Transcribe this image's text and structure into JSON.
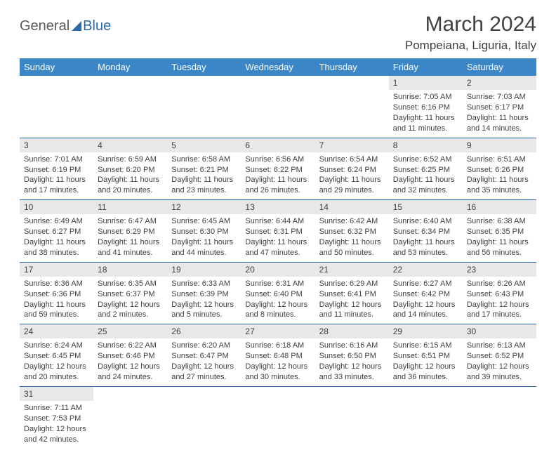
{
  "logo": {
    "text1": "General",
    "text2": "Blue"
  },
  "title": "March 2024",
  "location": "Pompeiana, Liguria, Italy",
  "colors": {
    "header_bg": "#3b86c6",
    "header_text": "#ffffff",
    "accent": "#2b6aaa",
    "daynum_bg": "#e8e8e8",
    "text": "#404040",
    "background": "#ffffff"
  },
  "dayHeaders": [
    "Sunday",
    "Monday",
    "Tuesday",
    "Wednesday",
    "Thursday",
    "Friday",
    "Saturday"
  ],
  "weeks": [
    [
      null,
      null,
      null,
      null,
      null,
      {
        "n": "1",
        "sr": "7:05 AM",
        "ss": "6:16 PM",
        "dl": "11 hours and 11 minutes."
      },
      {
        "n": "2",
        "sr": "7:03 AM",
        "ss": "6:17 PM",
        "dl": "11 hours and 14 minutes."
      }
    ],
    [
      {
        "n": "3",
        "sr": "7:01 AM",
        "ss": "6:19 PM",
        "dl": "11 hours and 17 minutes."
      },
      {
        "n": "4",
        "sr": "6:59 AM",
        "ss": "6:20 PM",
        "dl": "11 hours and 20 minutes."
      },
      {
        "n": "5",
        "sr": "6:58 AM",
        "ss": "6:21 PM",
        "dl": "11 hours and 23 minutes."
      },
      {
        "n": "6",
        "sr": "6:56 AM",
        "ss": "6:22 PM",
        "dl": "11 hours and 26 minutes."
      },
      {
        "n": "7",
        "sr": "6:54 AM",
        "ss": "6:24 PM",
        "dl": "11 hours and 29 minutes."
      },
      {
        "n": "8",
        "sr": "6:52 AM",
        "ss": "6:25 PM",
        "dl": "11 hours and 32 minutes."
      },
      {
        "n": "9",
        "sr": "6:51 AM",
        "ss": "6:26 PM",
        "dl": "11 hours and 35 minutes."
      }
    ],
    [
      {
        "n": "10",
        "sr": "6:49 AM",
        "ss": "6:27 PM",
        "dl": "11 hours and 38 minutes."
      },
      {
        "n": "11",
        "sr": "6:47 AM",
        "ss": "6:29 PM",
        "dl": "11 hours and 41 minutes."
      },
      {
        "n": "12",
        "sr": "6:45 AM",
        "ss": "6:30 PM",
        "dl": "11 hours and 44 minutes."
      },
      {
        "n": "13",
        "sr": "6:44 AM",
        "ss": "6:31 PM",
        "dl": "11 hours and 47 minutes."
      },
      {
        "n": "14",
        "sr": "6:42 AM",
        "ss": "6:32 PM",
        "dl": "11 hours and 50 minutes."
      },
      {
        "n": "15",
        "sr": "6:40 AM",
        "ss": "6:34 PM",
        "dl": "11 hours and 53 minutes."
      },
      {
        "n": "16",
        "sr": "6:38 AM",
        "ss": "6:35 PM",
        "dl": "11 hours and 56 minutes."
      }
    ],
    [
      {
        "n": "17",
        "sr": "6:36 AM",
        "ss": "6:36 PM",
        "dl": "11 hours and 59 minutes."
      },
      {
        "n": "18",
        "sr": "6:35 AM",
        "ss": "6:37 PM",
        "dl": "12 hours and 2 minutes."
      },
      {
        "n": "19",
        "sr": "6:33 AM",
        "ss": "6:39 PM",
        "dl": "12 hours and 5 minutes."
      },
      {
        "n": "20",
        "sr": "6:31 AM",
        "ss": "6:40 PM",
        "dl": "12 hours and 8 minutes."
      },
      {
        "n": "21",
        "sr": "6:29 AM",
        "ss": "6:41 PM",
        "dl": "12 hours and 11 minutes."
      },
      {
        "n": "22",
        "sr": "6:27 AM",
        "ss": "6:42 PM",
        "dl": "12 hours and 14 minutes."
      },
      {
        "n": "23",
        "sr": "6:26 AM",
        "ss": "6:43 PM",
        "dl": "12 hours and 17 minutes."
      }
    ],
    [
      {
        "n": "24",
        "sr": "6:24 AM",
        "ss": "6:45 PM",
        "dl": "12 hours and 20 minutes."
      },
      {
        "n": "25",
        "sr": "6:22 AM",
        "ss": "6:46 PM",
        "dl": "12 hours and 24 minutes."
      },
      {
        "n": "26",
        "sr": "6:20 AM",
        "ss": "6:47 PM",
        "dl": "12 hours and 27 minutes."
      },
      {
        "n": "27",
        "sr": "6:18 AM",
        "ss": "6:48 PM",
        "dl": "12 hours and 30 minutes."
      },
      {
        "n": "28",
        "sr": "6:16 AM",
        "ss": "6:50 PM",
        "dl": "12 hours and 33 minutes."
      },
      {
        "n": "29",
        "sr": "6:15 AM",
        "ss": "6:51 PM",
        "dl": "12 hours and 36 minutes."
      },
      {
        "n": "30",
        "sr": "6:13 AM",
        "ss": "6:52 PM",
        "dl": "12 hours and 39 minutes."
      }
    ],
    [
      {
        "n": "31",
        "sr": "7:11 AM",
        "ss": "7:53 PM",
        "dl": "12 hours and 42 minutes."
      },
      null,
      null,
      null,
      null,
      null,
      null
    ]
  ],
  "labels": {
    "sunrise": "Sunrise:",
    "sunset": "Sunset:",
    "daylight": "Daylight:"
  }
}
